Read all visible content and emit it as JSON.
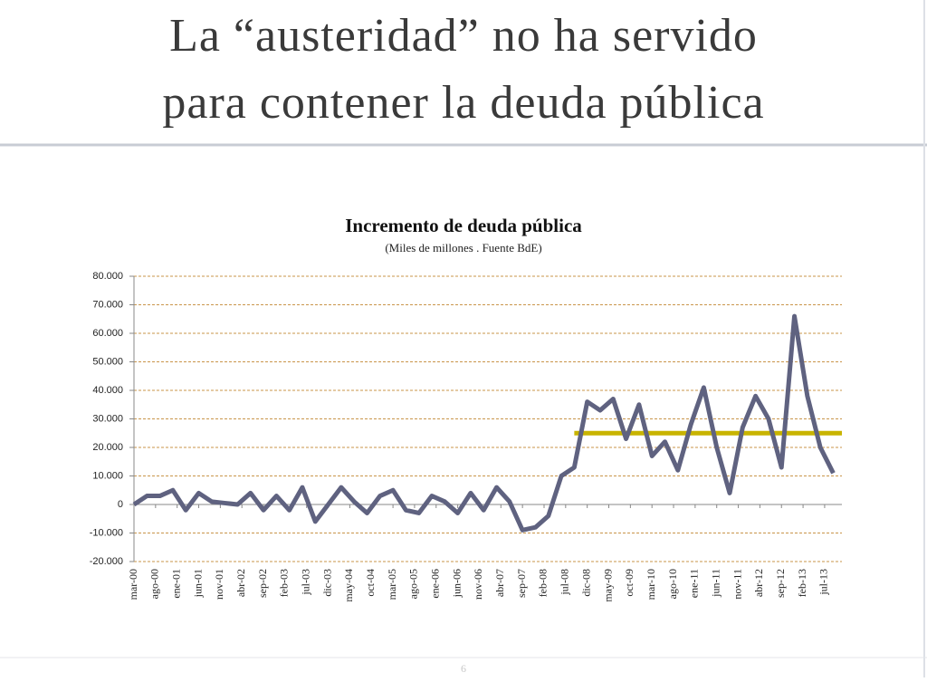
{
  "slide_title": [
    "La “austeridad” no ha servido",
    "para contener la deuda pública"
  ],
  "slide_number": "6",
  "chart_data": {
    "type": "line",
    "title": "Incremento de deuda pública",
    "subtitle": "(Miles de millones . Fuente BdE)",
    "x": [
      0,
      3,
      6,
      9,
      12,
      15,
      18,
      21,
      24,
      27,
      30,
      33,
      36,
      39,
      42,
      45,
      48,
      51,
      54,
      57,
      60,
      63,
      66,
      69,
      72,
      75,
      78,
      81,
      84,
      87,
      90,
      93,
      96,
      99,
      102,
      105,
      108,
      111,
      114,
      117,
      120,
      123,
      126,
      129,
      132,
      135,
      138,
      141,
      144,
      147,
      150,
      153,
      156,
      159,
      162
    ],
    "series": [
      {
        "color": "#5f6280",
        "values": [
          0,
          3000,
          3000,
          5000,
          -2000,
          4000,
          1000,
          500,
          0,
          4000,
          -2000,
          3000,
          -2000,
          6000,
          -6000,
          0,
          6000,
          1000,
          -3000,
          3000,
          5000,
          -2000,
          -3000,
          3000,
          1000,
          -3000,
          4000,
          -2000,
          6000,
          1000,
          -9000,
          -8000,
          -4000,
          10000,
          13000,
          36000,
          33000,
          37000,
          23000,
          35000,
          17000,
          22000,
          12000,
          28000,
          41000,
          20000,
          4000,
          27000,
          38000,
          30000,
          13000,
          66000,
          38000,
          20000,
          11000
        ]
      }
    ],
    "reference_line": {
      "value": 25000,
      "x": [
        102,
        164
      ],
      "color": "#c8b400"
    },
    "xlim": [
      0,
      164
    ],
    "xticks": [
      {
        "value": 0,
        "label": "mar-00"
      },
      {
        "value": 5,
        "label": "ago-00"
      },
      {
        "value": 10,
        "label": "ene-01"
      },
      {
        "value": 15,
        "label": "jun-01"
      },
      {
        "value": 20,
        "label": "nov-01"
      },
      {
        "value": 25,
        "label": "abr-02"
      },
      {
        "value": 30,
        "label": "sep-02"
      },
      {
        "value": 35,
        "label": "feb-03"
      },
      {
        "value": 40,
        "label": "jul-03"
      },
      {
        "value": 45,
        "label": "dic-03"
      },
      {
        "value": 50,
        "label": "may-04"
      },
      {
        "value": 55,
        "label": "oct-04"
      },
      {
        "value": 60,
        "label": "mar-05"
      },
      {
        "value": 65,
        "label": "ago-05"
      },
      {
        "value": 70,
        "label": "ene-06"
      },
      {
        "value": 75,
        "label": "jun-06"
      },
      {
        "value": 80,
        "label": "nov-06"
      },
      {
        "value": 85,
        "label": "abr-07"
      },
      {
        "value": 90,
        "label": "sep-07"
      },
      {
        "value": 95,
        "label": "feb-08"
      },
      {
        "value": 100,
        "label": "jul-08"
      },
      {
        "value": 105,
        "label": "dic-08"
      },
      {
        "value": 110,
        "label": "may-09"
      },
      {
        "value": 115,
        "label": "oct-09"
      },
      {
        "value": 120,
        "label": "mar-10"
      },
      {
        "value": 125,
        "label": "ago-10"
      },
      {
        "value": 130,
        "label": "ene-11"
      },
      {
        "value": 135,
        "label": "jun-11"
      },
      {
        "value": 140,
        "label": "nov-11"
      },
      {
        "value": 145,
        "label": "abr-12"
      },
      {
        "value": 150,
        "label": "sep-12"
      },
      {
        "value": 155,
        "label": "feb-13"
      },
      {
        "value": 160,
        "label": "jul-13"
      }
    ],
    "ylim": [
      -20000,
      80000
    ],
    "yticks": [
      {
        "value": -20000,
        "label": "-20.000"
      },
      {
        "value": -10000,
        "label": "-10.000"
      },
      0,
      {
        "value": 10000,
        "label": "10.000"
      },
      {
        "value": 20000,
        "label": "20.000"
      },
      {
        "value": 30000,
        "label": "30.000"
      },
      {
        "value": 40000,
        "label": "40.000"
      },
      {
        "value": 50000,
        "label": "50.000"
      },
      {
        "value": 60000,
        "label": "60.000"
      },
      {
        "value": 70000,
        "label": "70.000"
      },
      {
        "value": 80000,
        "label": "80.000"
      }
    ],
    "grid": true
  }
}
